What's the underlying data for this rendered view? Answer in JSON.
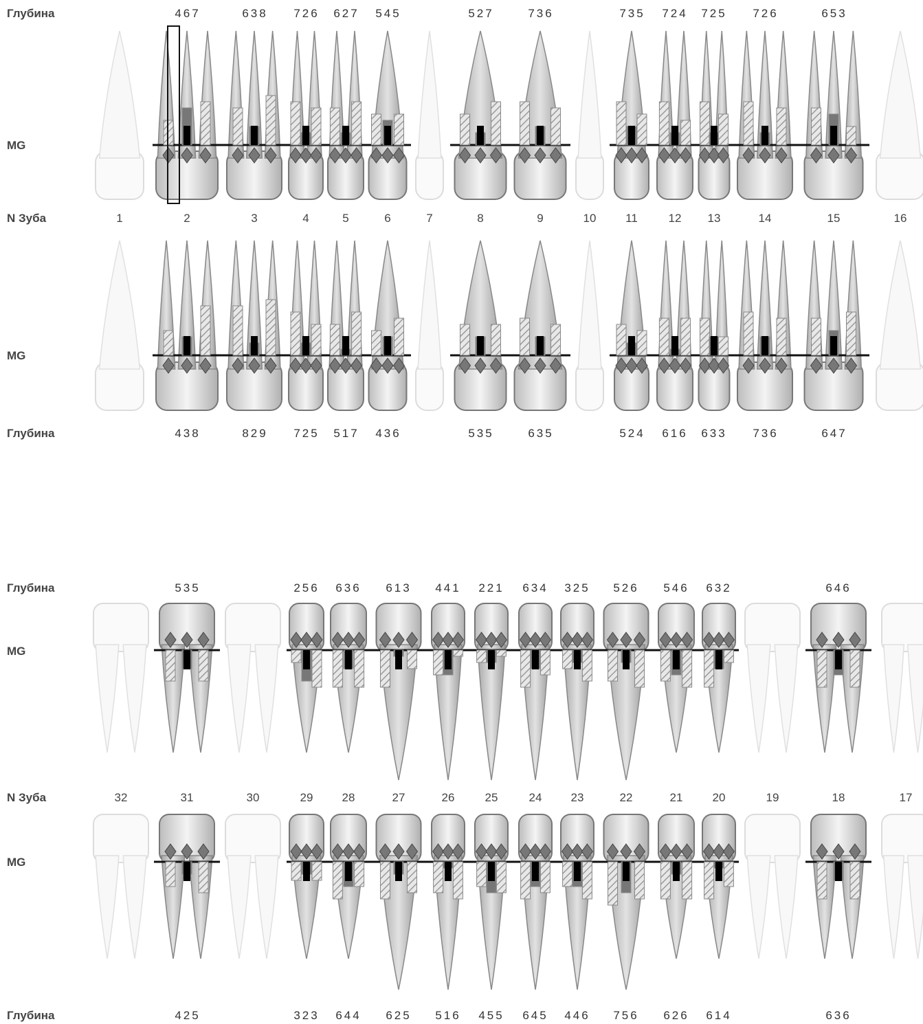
{
  "labels": {
    "depth": "Глубина",
    "mg": "MG",
    "tooth_no": "N Зуба"
  },
  "upper": {
    "teeth": [
      {
        "n": "1",
        "present": false
      },
      {
        "n": "2",
        "present": true,
        "roots": 3
      },
      {
        "n": "3",
        "present": true,
        "roots": 3
      },
      {
        "n": "4",
        "present": true,
        "roots": 2
      },
      {
        "n": "5",
        "present": true,
        "roots": 2
      },
      {
        "n": "6",
        "present": true,
        "roots": 1
      },
      {
        "n": "7",
        "present": false
      },
      {
        "n": "8",
        "present": true,
        "roots": 1
      },
      {
        "n": "9",
        "present": true,
        "roots": 1
      },
      {
        "n": "10",
        "present": false
      },
      {
        "n": "11",
        "present": true,
        "roots": 1
      },
      {
        "n": "12",
        "present": true,
        "roots": 2
      },
      {
        "n": "13",
        "present": true,
        "roots": 2
      },
      {
        "n": "14",
        "present": true,
        "roots": 3
      },
      {
        "n": "15",
        "present": true,
        "roots": 3
      },
      {
        "n": "16",
        "present": false
      }
    ],
    "buccal_depth": [
      "467",
      "638",
      "726",
      "627",
      "545",
      "527",
      "736",
      "735",
      "724",
      "725",
      "726",
      "653"
    ],
    "palatal_depth": [
      "438",
      "829",
      "725",
      "517",
      "436",
      "535",
      "635",
      "524",
      "616",
      "633",
      "736",
      "647"
    ]
  },
  "lower": {
    "teeth": [
      {
        "n": "32",
        "present": false
      },
      {
        "n": "31",
        "present": true
      },
      {
        "n": "30",
        "present": false
      },
      {
        "n": "29",
        "present": true
      },
      {
        "n": "28",
        "present": true
      },
      {
        "n": "27",
        "present": true
      },
      {
        "n": "26",
        "present": true
      },
      {
        "n": "25",
        "present": true
      },
      {
        "n": "24",
        "present": true
      },
      {
        "n": "23",
        "present": true
      },
      {
        "n": "22",
        "present": true
      },
      {
        "n": "21",
        "present": true
      },
      {
        "n": "20",
        "present": true
      },
      {
        "n": "19",
        "present": false
      },
      {
        "n": "18",
        "present": true
      },
      {
        "n": "17",
        "present": false
      }
    ],
    "lingual_depth": [
      "535",
      "256",
      "636",
      "613",
      "441",
      "221",
      "634",
      "325",
      "526",
      "546",
      "632",
      "646"
    ],
    "buccal_depth": [
      "425",
      "323",
      "644",
      "625",
      "516",
      "455",
      "645",
      "446",
      "756",
      "626",
      "614",
      "636"
    ]
  },
  "colors": {
    "tooth": "#c8c8c8",
    "missing": "#f2f2f2",
    "bar": "#777777",
    "hatch": "#999999",
    "mark": "#000000",
    "diamond": "#777777",
    "line": "#888888"
  }
}
